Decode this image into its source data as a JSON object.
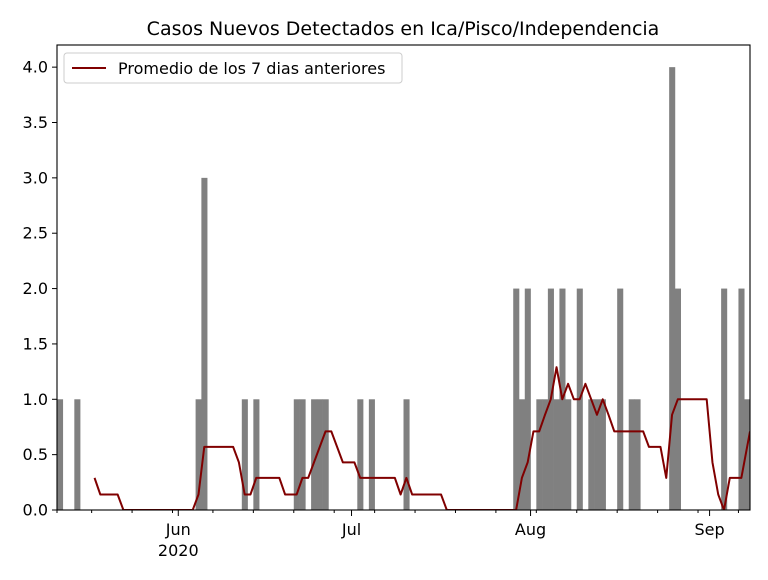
{
  "chart_data": {
    "type": "bar",
    "title": "Casos Nuevos Detectados en Ica/Pisco/Independencia",
    "xlabel": "",
    "ylabel": "",
    "ylim": [
      0,
      4.2
    ],
    "yticks": [
      0.0,
      0.5,
      1.0,
      1.5,
      2.0,
      2.5,
      3.0,
      3.5,
      4.0
    ],
    "ytick_labels": [
      "0.0",
      "0.5",
      "1.0",
      "1.5",
      "2.0",
      "2.5",
      "3.0",
      "3.5",
      "4.0"
    ],
    "x_start": "2020-05-11",
    "x_end": "2020-09-07",
    "x_major_ticks": [
      {
        "date": "2020-06-01",
        "label": "Jun",
        "sublabel": "2020"
      },
      {
        "date": "2020-07-01",
        "label": "Jul",
        "sublabel": ""
      },
      {
        "date": "2020-08-01",
        "label": "Aug",
        "sublabel": ""
      },
      {
        "date": "2020-09-01",
        "label": "Sep",
        "sublabel": ""
      }
    ],
    "x_minor_ticks": [
      "2020-05-11",
      "2020-05-17",
      "2020-05-24",
      "2020-05-31",
      "2020-06-07",
      "2020-06-14",
      "2020-06-21",
      "2020-06-28",
      "2020-07-05",
      "2020-07-12",
      "2020-07-19",
      "2020-07-26",
      "2020-08-02",
      "2020-08-09",
      "2020-08-16",
      "2020-08-23",
      "2020-08-30",
      "2020-09-06"
    ],
    "series": [
      {
        "kind": "bar",
        "color": "#808080",
        "points": [
          {
            "x": "2020-05-11",
            "y": 1
          },
          {
            "x": "2020-05-14",
            "y": 1
          },
          {
            "x": "2020-06-04",
            "y": 1
          },
          {
            "x": "2020-06-05",
            "y": 3
          },
          {
            "x": "2020-06-12",
            "y": 1
          },
          {
            "x": "2020-06-14",
            "y": 1
          },
          {
            "x": "2020-06-21",
            "y": 1
          },
          {
            "x": "2020-06-22",
            "y": 1
          },
          {
            "x": "2020-06-24",
            "y": 1
          },
          {
            "x": "2020-06-25",
            "y": 1
          },
          {
            "x": "2020-06-26",
            "y": 1
          },
          {
            "x": "2020-07-02",
            "y": 1
          },
          {
            "x": "2020-07-04",
            "y": 1
          },
          {
            "x": "2020-07-10",
            "y": 1
          },
          {
            "x": "2020-07-29",
            "y": 2
          },
          {
            "x": "2020-07-30",
            "y": 1
          },
          {
            "x": "2020-07-31",
            "y": 2
          },
          {
            "x": "2020-08-02",
            "y": 1
          },
          {
            "x": "2020-08-03",
            "y": 1
          },
          {
            "x": "2020-08-04",
            "y": 2
          },
          {
            "x": "2020-08-05",
            "y": 1
          },
          {
            "x": "2020-08-06",
            "y": 2
          },
          {
            "x": "2020-08-07",
            "y": 1
          },
          {
            "x": "2020-08-09",
            "y": 2
          },
          {
            "x": "2020-08-11",
            "y": 1
          },
          {
            "x": "2020-08-12",
            "y": 1
          },
          {
            "x": "2020-08-13",
            "y": 1
          },
          {
            "x": "2020-08-16",
            "y": 2
          },
          {
            "x": "2020-08-18",
            "y": 1
          },
          {
            "x": "2020-08-19",
            "y": 1
          },
          {
            "x": "2020-08-25",
            "y": 4
          },
          {
            "x": "2020-08-26",
            "y": 2
          },
          {
            "x": "2020-09-03",
            "y": 2
          },
          {
            "x": "2020-09-06",
            "y": 2
          },
          {
            "x": "2020-09-07",
            "y": 1
          }
        ]
      },
      {
        "kind": "line",
        "name": "Promedio de los 7 dias anteriores",
        "color": "#800000",
        "points": [
          {
            "x": "2020-05-17",
            "y": 0.29
          },
          {
            "x": "2020-05-18",
            "y": 0.14
          },
          {
            "x": "2020-05-21",
            "y": 0.14
          },
          {
            "x": "2020-05-22",
            "y": 0.0
          },
          {
            "x": "2020-06-03",
            "y": 0.0
          },
          {
            "x": "2020-06-04",
            "y": 0.14
          },
          {
            "x": "2020-06-05",
            "y": 0.57
          },
          {
            "x": "2020-06-10",
            "y": 0.57
          },
          {
            "x": "2020-06-11",
            "y": 0.43
          },
          {
            "x": "2020-06-12",
            "y": 0.14
          },
          {
            "x": "2020-06-13",
            "y": 0.14
          },
          {
            "x": "2020-06-14",
            "y": 0.29
          },
          {
            "x": "2020-06-18",
            "y": 0.29
          },
          {
            "x": "2020-06-19",
            "y": 0.14
          },
          {
            "x": "2020-06-21",
            "y": 0.14
          },
          {
            "x": "2020-06-22",
            "y": 0.29
          },
          {
            "x": "2020-06-23",
            "y": 0.29
          },
          {
            "x": "2020-06-24",
            "y": 0.43
          },
          {
            "x": "2020-06-25",
            "y": 0.57
          },
          {
            "x": "2020-06-26",
            "y": 0.71
          },
          {
            "x": "2020-06-27",
            "y": 0.71
          },
          {
            "x": "2020-06-28",
            "y": 0.57
          },
          {
            "x": "2020-06-29",
            "y": 0.43
          },
          {
            "x": "2020-07-01",
            "y": 0.43
          },
          {
            "x": "2020-07-02",
            "y": 0.29
          },
          {
            "x": "2020-07-08",
            "y": 0.29
          },
          {
            "x": "2020-07-09",
            "y": 0.14
          },
          {
            "x": "2020-07-10",
            "y": 0.29
          },
          {
            "x": "2020-07-11",
            "y": 0.14
          },
          {
            "x": "2020-07-16",
            "y": 0.14
          },
          {
            "x": "2020-07-17",
            "y": 0.0
          },
          {
            "x": "2020-07-29",
            "y": 0.0
          },
          {
            "x": "2020-07-30",
            "y": 0.29
          },
          {
            "x": "2020-07-31",
            "y": 0.43
          },
          {
            "x": "2020-08-01",
            "y": 0.71
          },
          {
            "x": "2020-08-02",
            "y": 0.71
          },
          {
            "x": "2020-08-03",
            "y": 0.86
          },
          {
            "x": "2020-08-04",
            "y": 1.0
          },
          {
            "x": "2020-08-05",
            "y": 1.29
          },
          {
            "x": "2020-08-06",
            "y": 1.0
          },
          {
            "x": "2020-08-07",
            "y": 1.14
          },
          {
            "x": "2020-08-08",
            "y": 1.0
          },
          {
            "x": "2020-08-09",
            "y": 1.0
          },
          {
            "x": "2020-08-10",
            "y": 1.14
          },
          {
            "x": "2020-08-11",
            "y": 1.0
          },
          {
            "x": "2020-08-12",
            "y": 0.86
          },
          {
            "x": "2020-08-13",
            "y": 1.0
          },
          {
            "x": "2020-08-14",
            "y": 0.86
          },
          {
            "x": "2020-08-15",
            "y": 0.71
          },
          {
            "x": "2020-08-20",
            "y": 0.71
          },
          {
            "x": "2020-08-21",
            "y": 0.57
          },
          {
            "x": "2020-08-23",
            "y": 0.57
          },
          {
            "x": "2020-08-24",
            "y": 0.29
          },
          {
            "x": "2020-08-25",
            "y": 0.86
          },
          {
            "x": "2020-08-26",
            "y": 1.0
          },
          {
            "x": "2020-08-31",
            "y": 1.0
          },
          {
            "x": "2020-09-01",
            "y": 0.43
          },
          {
            "x": "2020-09-02",
            "y": 0.14
          },
          {
            "x": "2020-09-03",
            "y": 0.0
          },
          {
            "x": "2020-09-04",
            "y": 0.29
          },
          {
            "x": "2020-09-06",
            "y": 0.29
          },
          {
            "x": "2020-09-07",
            "y": 0.57
          },
          {
            "x": "2020-09-08",
            "y": 0.71
          }
        ]
      }
    ],
    "legend": {
      "position": "top-left",
      "entries": [
        "Promedio de los 7 dias anteriores"
      ]
    },
    "grid": false
  }
}
